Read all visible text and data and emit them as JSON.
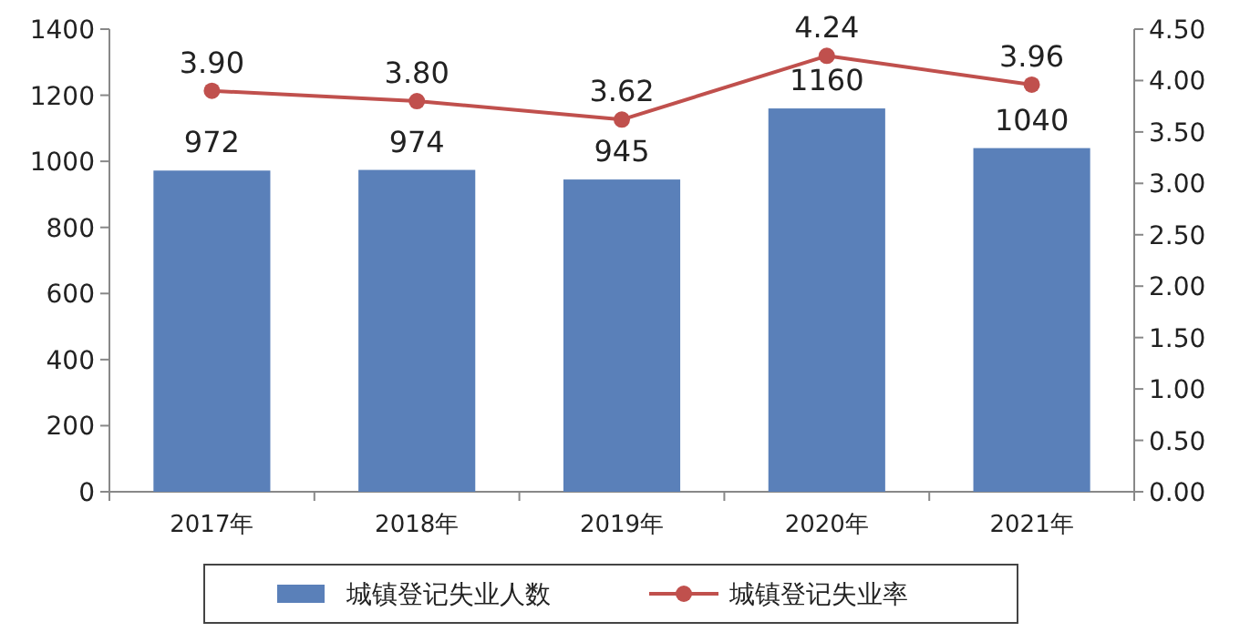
{
  "chart_data": {
    "type": "bar",
    "categories": [
      "2017年",
      "2018年",
      "2019年",
      "2020年",
      "2021年"
    ],
    "series": [
      {
        "name": "城镇登记失业人数",
        "color": "#5a80b9",
        "values": [
          972,
          974,
          945,
          1160,
          1040
        ],
        "value_labels": [
          "972",
          "974",
          "945",
          "1160",
          "1040"
        ]
      },
      {
        "name": "城镇登记失业率",
        "type": "line",
        "axis": "y2",
        "color": "#c0504d",
        "marker": "circle",
        "values": [
          3.9,
          3.8,
          3.62,
          4.24,
          3.96
        ],
        "value_labels": [
          "3.90",
          "3.80",
          "3.62",
          "4.24",
          "3.96"
        ]
      }
    ],
    "ylim": [
      0,
      1400
    ],
    "yticks": [
      0,
      200,
      400,
      600,
      800,
      1000,
      1200,
      1400
    ],
    "y2lim": [
      0,
      4.5
    ],
    "y2ticks": [
      {
        "value": 0,
        "label": "0.00"
      },
      {
        "value": 0.5,
        "label": "0.50"
      },
      {
        "value": 1,
        "label": "1.00"
      },
      {
        "value": 1.5,
        "label": "1.50"
      },
      {
        "value": 2,
        "label": "2.00"
      },
      {
        "value": 2.5,
        "label": "2.50"
      },
      {
        "value": 3,
        "label": "3.00"
      },
      {
        "value": 3.5,
        "label": "3.50"
      },
      {
        "value": 4,
        "label": "4.00"
      },
      {
        "value": 4.5,
        "label": "4.50"
      }
    ],
    "grid": false,
    "legend": "bottom"
  }
}
